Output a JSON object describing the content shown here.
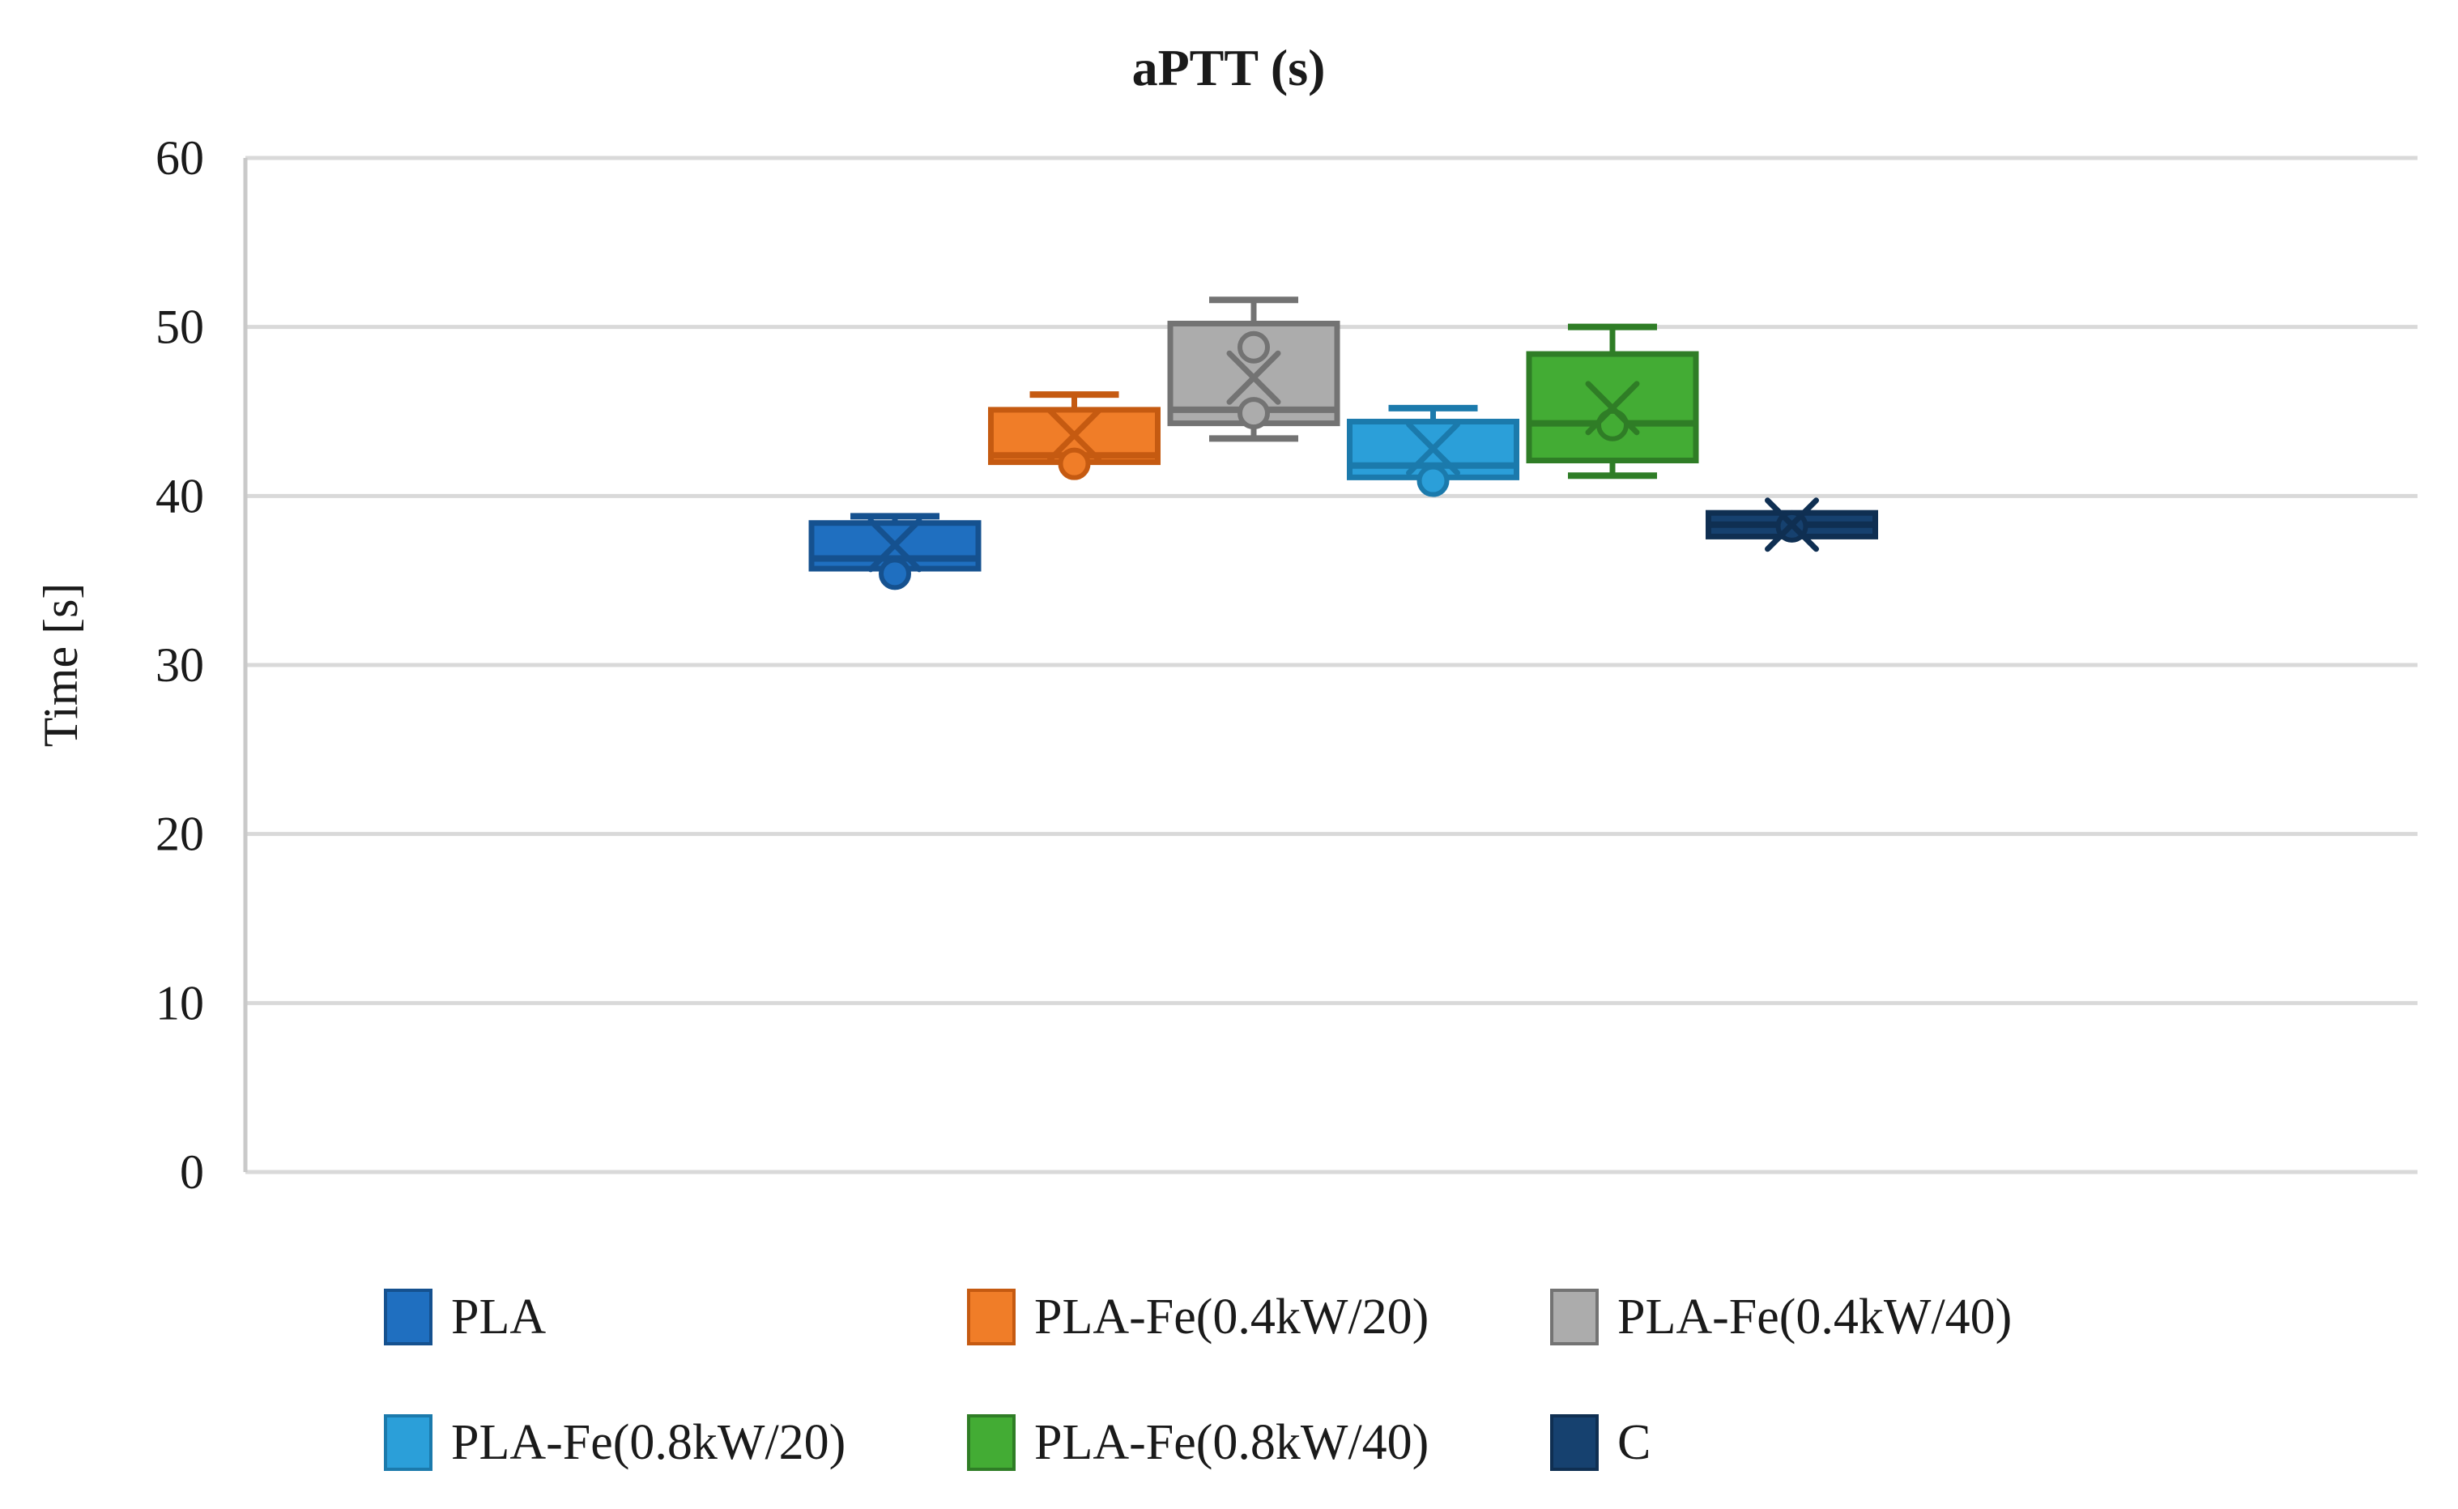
{
  "title": "aPTT (s)",
  "chart_data": {
    "type": "box",
    "title": "aPTT (s)",
    "ylabel": "Time [s]",
    "xlabel": "",
    "ylim": [
      0,
      60
    ],
    "yticks": [
      0,
      10,
      20,
      30,
      40,
      50,
      60
    ],
    "grid": "horizontal-gridlines-on",
    "legend_position": "bottom",
    "legend_rows": [
      3,
      3
    ],
    "series": [
      {
        "name": "PLA",
        "fill": "#1F6FC0",
        "border": "#15518F",
        "q1": 35.7,
        "median": 36.3,
        "q3": 38.4,
        "whisker_low": 35.7,
        "whisker_high": 38.8,
        "mean": 37.1,
        "points": [
          35.4
        ]
      },
      {
        "name": "PLA-Fe(0.4kW/20)",
        "fill": "#F07D28",
        "border": "#C55A11",
        "q1": 42.0,
        "median": 42.4,
        "q3": 45.1,
        "whisker_low": 42.0,
        "whisker_high": 46.0,
        "mean": 43.6,
        "points": [
          41.9
        ]
      },
      {
        "name": "PLA-Fe(0.4kW/40)",
        "fill": "#ACACAC",
        "border": "#737373",
        "q1": 44.3,
        "median": 45.1,
        "q3": 50.2,
        "whisker_low": 43.4,
        "whisker_high": 51.6,
        "mean": 47.0,
        "points": [
          48.8,
          44.9
        ]
      },
      {
        "name": "PLA-Fe(0.8kW/20)",
        "fill": "#2B9FD9",
        "border": "#1B7AAC",
        "q1": 41.1,
        "median": 41.8,
        "q3": 44.4,
        "whisker_low": 41.1,
        "whisker_high": 45.2,
        "mean": 42.8,
        "points": [
          40.9
        ]
      },
      {
        "name": "PLA-Fe(0.8kW/40)",
        "fill": "#43AC34",
        "border": "#2F7D26",
        "q1": 42.1,
        "median": 44.3,
        "q3": 48.4,
        "whisker_low": 41.2,
        "whisker_high": 50.0,
        "mean": 45.2,
        "points": [
          44.2
        ]
      },
      {
        "name": "C",
        "fill": "#16416F",
        "border": "#0F2F52",
        "q1": 37.6,
        "median": 38.3,
        "q3": 39.0,
        "whisker_low": 37.6,
        "whisker_high": 39.0,
        "mean": 38.3,
        "points": [
          38.2
        ]
      }
    ],
    "colors": {
      "gridline": "#D9D9D9",
      "axis_line": "#C9C9C9",
      "text": "#1A1A1A"
    }
  }
}
